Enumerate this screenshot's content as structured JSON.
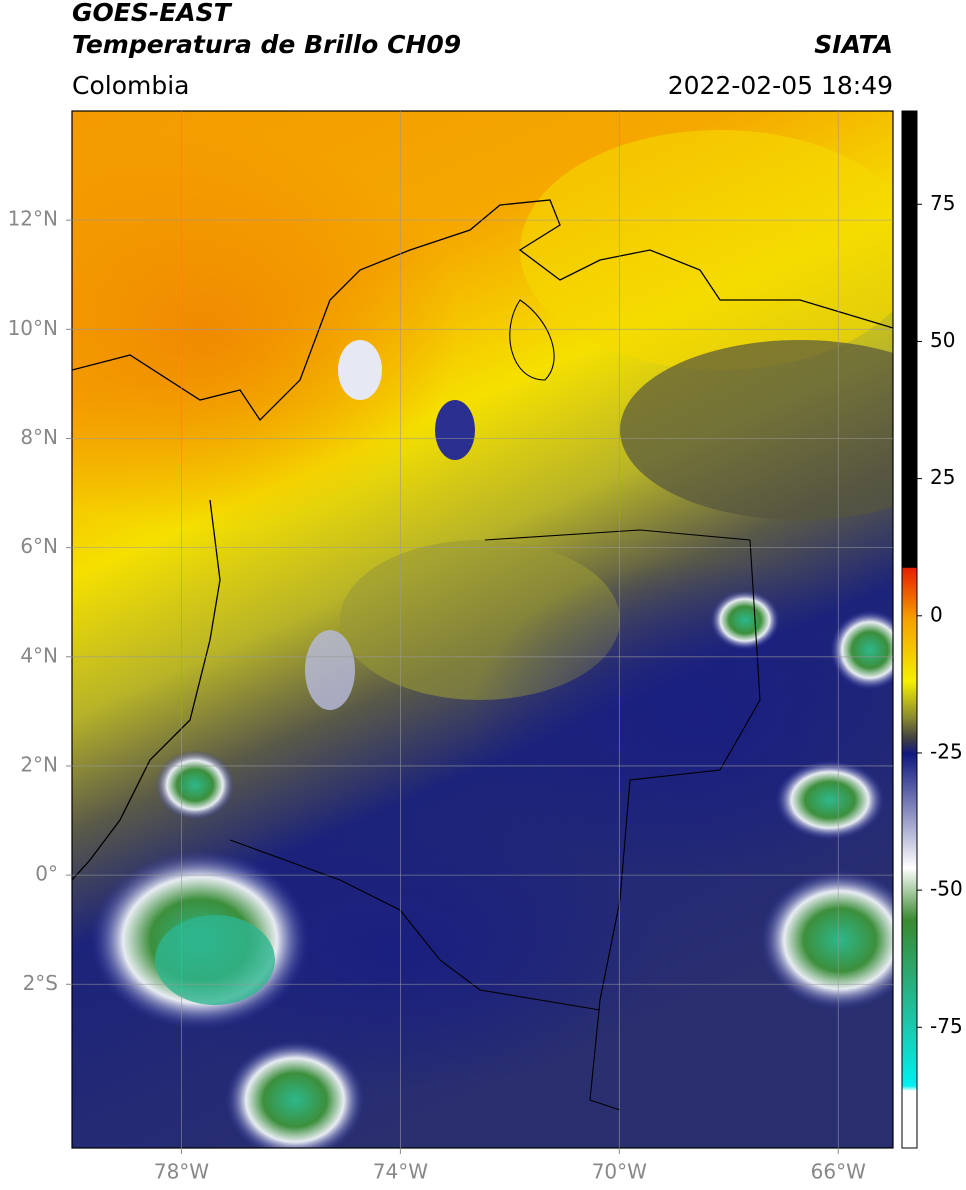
{
  "header": {
    "satellite": "GOES-EAST",
    "product": "Temperatura de Brillo CH09",
    "source": "SIATA",
    "region": "Colombia",
    "datetime": "2022-02-05 18:49"
  },
  "map": {
    "lonlim": [
      -80,
      -65
    ],
    "latlim": [
      -5,
      14
    ],
    "grid": true,
    "lon_ticks": [
      {
        "value": -78,
        "label": "78°W"
      },
      {
        "value": -74,
        "label": "74°W"
      },
      {
        "value": -70,
        "label": "70°W"
      },
      {
        "value": -66,
        "label": "66°W"
      }
    ],
    "lat_ticks": [
      {
        "value": 12,
        "label": "12°N"
      },
      {
        "value": 10,
        "label": "10°N"
      },
      {
        "value": 8,
        "label": "8°N"
      },
      {
        "value": 6,
        "label": "6°N"
      },
      {
        "value": 4,
        "label": "4°N"
      },
      {
        "value": 2,
        "label": "2°N"
      },
      {
        "value": 0,
        "label": "0°"
      },
      {
        "value": -2,
        "label": "2°S"
      }
    ]
  },
  "colorbar": {
    "lim": [
      -97,
      92
    ],
    "ticks": [
      75,
      50,
      25,
      0,
      -25,
      -50,
      -75
    ]
  }
}
